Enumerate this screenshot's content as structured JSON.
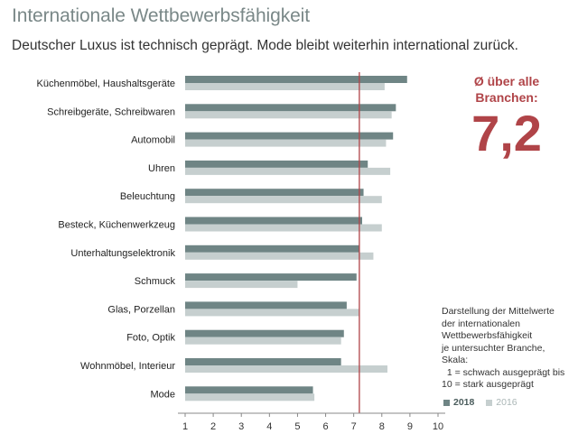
{
  "title": "Internationale Wettbewerbsfähigkeit",
  "subtitle": "Deutscher Luxus ist technisch geprägt. Mode bleibt weiterhin international zurück.",
  "average": {
    "label_line1": "Ø über alle",
    "label_line2": "Branchen:",
    "value": "7,2"
  },
  "note": {
    "lines": [
      "Darstellung der Mittelwerte",
      "der internationalen",
      "Wettbewerbsfähigkeit",
      "je untersuchter Branche,",
      "Skala:",
      "  1 = schwach ausgeprägt bis",
      "10 = stark ausgeprägt"
    ]
  },
  "colors": {
    "series_2018": "#6f8585",
    "series_2016": "#c6cfcf",
    "reference_line": "#b04448",
    "axis": "#888888"
  },
  "chart_data": {
    "type": "bar",
    "orientation": "horizontal",
    "categories": [
      "Küchenmöbel, Haushaltsgeräte",
      "Schreibgeräte, Schreibwaren",
      "Automobil",
      "Uhren",
      "Beleuchtung",
      "Besteck, Küchenwerkzeug",
      "Unterhaltungselektronik",
      "Schmuck",
      "Glas, Porzellan",
      "Foto, Optik",
      "Wohnmöbel, Interieur",
      "Mode"
    ],
    "series": [
      {
        "name": "2018",
        "values": [
          8.9,
          8.5,
          8.4,
          7.5,
          7.35,
          7.3,
          7.2,
          7.1,
          6.75,
          6.65,
          6.55,
          5.55
        ]
      },
      {
        "name": "2016",
        "values": [
          8.1,
          8.35,
          8.15,
          8.3,
          8.0,
          8.0,
          7.7,
          5.0,
          7.2,
          6.55,
          8.2,
          5.6
        ]
      }
    ],
    "reference_value": 7.2,
    "xlim": [
      1,
      10
    ],
    "xticks": [
      "1",
      "2",
      "3",
      "4",
      "5",
      "6",
      "7",
      "8",
      "9",
      "10"
    ],
    "legend_position": "bottom-right",
    "grid": false
  }
}
